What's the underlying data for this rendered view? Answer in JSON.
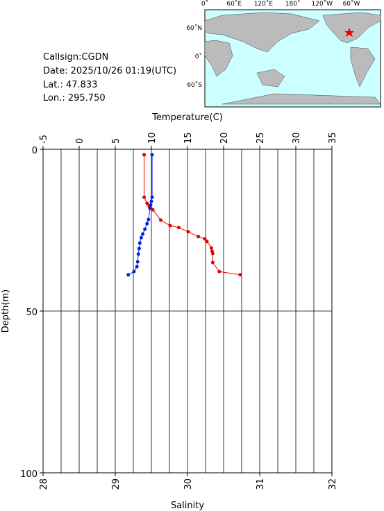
{
  "info": {
    "callsign": "Callsign:CGDN",
    "date": "Date:  2025/10/26 01:19(UTC)",
    "lat": "Lat.:  47.833",
    "lon": "Lon.:  295.750"
  },
  "map": {
    "xlabels": [
      "0˚",
      "60˚E",
      "120˚E",
      "180˚",
      "120˚W",
      "60˚W"
    ],
    "ylabels": [
      "60˚N",
      "0˚",
      "60˚S"
    ]
  },
  "chart_data": {
    "type": "profile",
    "x_label": "Temperature(C)",
    "x2_label": "Salinity",
    "y_label": "Depth(m)",
    "xlim": [
      -5,
      35
    ],
    "xticks": [
      -5,
      0,
      5,
      10,
      15,
      20,
      25,
      30,
      35
    ],
    "x2lim": [
      28,
      32
    ],
    "x2ticks": [
      28,
      29,
      30,
      31,
      32
    ],
    "ylim": [
      0,
      100
    ],
    "yticks": [
      0,
      50,
      100
    ],
    "y_reversed": true,
    "grid": true,
    "series": [
      {
        "color": "#e00000",
        "axis": "x",
        "x": [
          9.0,
          9.0,
          9.4,
          9.7,
          9.9,
          10.2,
          11.3,
          12.6,
          13.8,
          15.1,
          16.5,
          17.4,
          17.7,
          18.3,
          18.4,
          18.5,
          18.5,
          19.4,
          22.3
        ],
        "depth": [
          1.7,
          14.8,
          16.7,
          17.6,
          18.2,
          18.7,
          21.9,
          23.6,
          24.2,
          25.5,
          27.0,
          27.7,
          28.5,
          30.5,
          31.5,
          32.2,
          35.0,
          37.8,
          38.8
        ]
      },
      {
        "color": "#0020e0",
        "axis": "x2",
        "x": [
          29.51,
          29.51,
          29.5,
          29.49,
          29.48,
          29.46,
          29.44,
          29.41,
          29.38,
          29.36,
          29.34,
          29.33,
          29.32,
          29.31,
          29.3,
          29.26,
          29.18
        ],
        "depth": [
          1.7,
          14.8,
          16.1,
          17.2,
          18.2,
          21.7,
          23.0,
          24.7,
          26.2,
          27.3,
          29.0,
          30.7,
          32.4,
          34.8,
          36.3,
          37.8,
          38.8
        ]
      }
    ]
  }
}
